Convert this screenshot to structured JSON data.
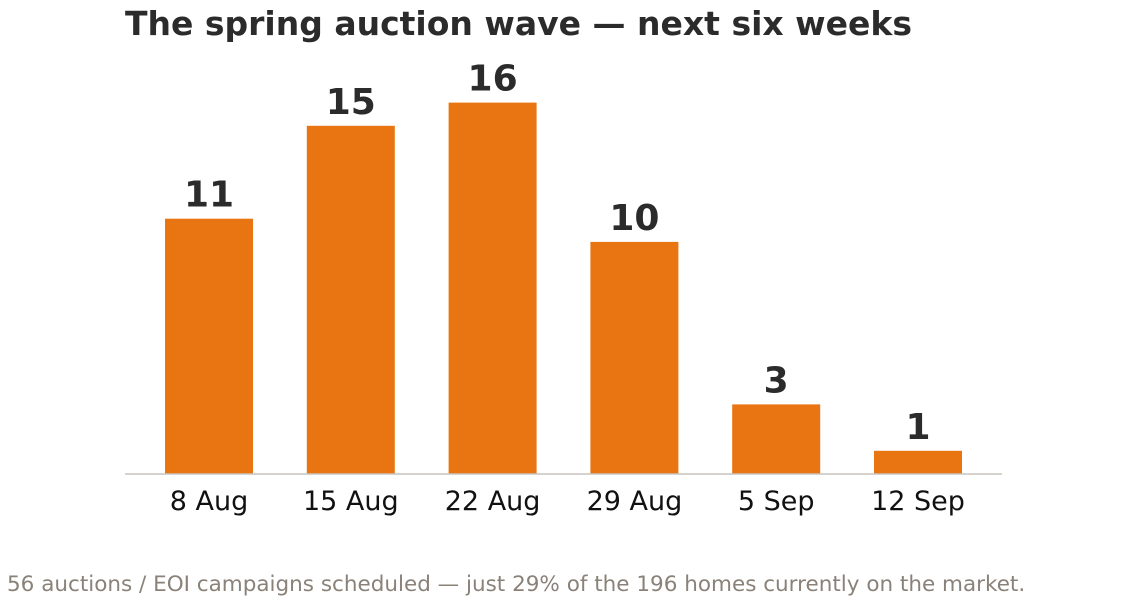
{
  "chart_data": {
    "type": "bar",
    "title": "The spring auction wave — next six weeks",
    "xlabel": "",
    "ylabel": "",
    "categories": [
      "8 Aug",
      "15 Aug",
      "22 Aug",
      "29 Aug",
      "5 Sep",
      "12 Sep"
    ],
    "values": [
      11,
      15,
      16,
      10,
      3,
      1
    ],
    "value_labels": [
      "11",
      "15",
      "16",
      "10",
      "3",
      "1"
    ],
    "ylim": [
      0,
      16.5
    ],
    "grid": false,
    "legend": "none",
    "bar_color": "#e87511",
    "baseline_color": "#c8c4bd",
    "footnote": "56 auctions / EOI campaigns scheduled — just 29% of the 196 homes currently on the market."
  }
}
